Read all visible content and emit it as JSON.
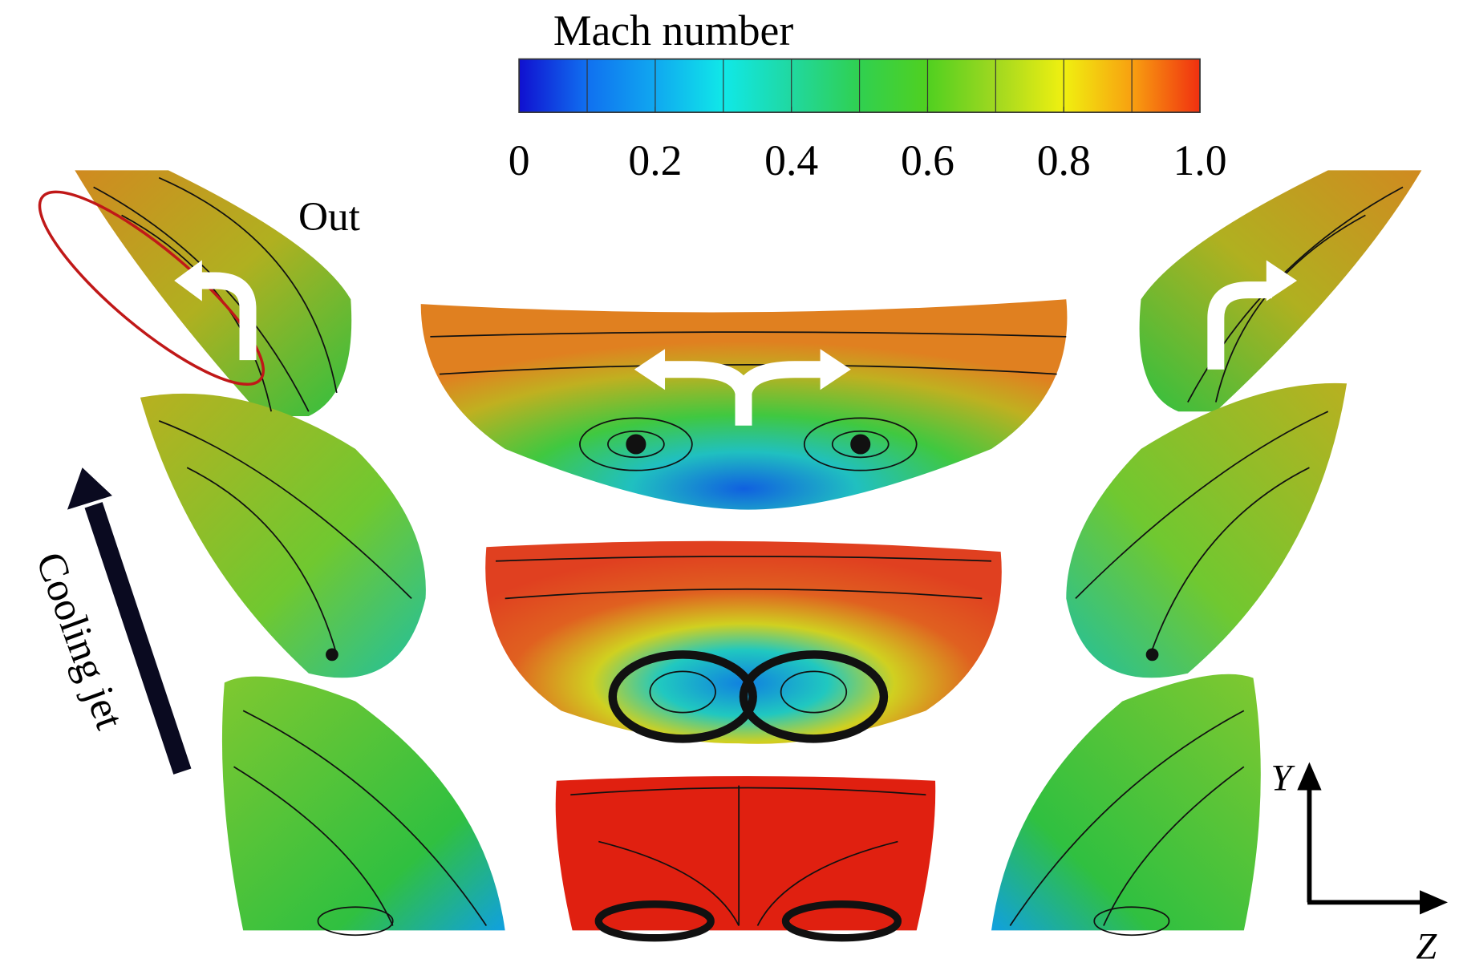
{
  "colorbar": {
    "title": "Mach number",
    "lim": [
      0,
      1
    ],
    "ticks": [
      0,
      0.2,
      0.4,
      0.6,
      0.8,
      {
        "value": 1,
        "label": "1.0"
      }
    ],
    "colors": [
      "#1010d0",
      "#1070f0",
      "#10a8f0",
      "#10e8e8",
      "#20d8a0",
      "#30d050",
      "#50d020",
      "#a0d820",
      "#f0f010",
      "#f8a010",
      "#f03010"
    ]
  },
  "labels": {
    "out": "Out",
    "cooling_jet": "Cooling jet",
    "y_axis": "Y",
    "z_axis": "Z"
  }
}
